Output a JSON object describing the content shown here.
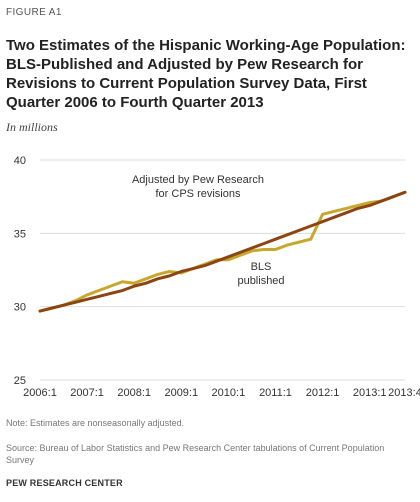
{
  "figure_label": "FIGURE A1",
  "chart_data": {
    "type": "line",
    "title": "Two Estimates of the Hispanic Working-Age Population: BLS-Published and Adjusted by Pew Research for Revisions to Current Population Survey Data, First Quarter 2006 to Fourth Quarter 2013",
    "subtitle": "In millions",
    "ylim": [
      25,
      40
    ],
    "yticks": [
      25,
      30,
      35,
      40
    ],
    "xtick_labels": [
      "2006:1",
      "2007:1",
      "2008:1",
      "2009:1",
      "2010:1",
      "2011:1",
      "2012:1",
      "2013:1",
      "2013:4"
    ],
    "xtick_positions": [
      0,
      4,
      8,
      12,
      16,
      20,
      24,
      28,
      31
    ],
    "grid": "horizontal",
    "series": [
      {
        "name": "Adjusted by Pew Research for CPS revisions",
        "color": "#8b4513",
        "values": [
          29.7,
          29.9,
          30.1,
          30.3,
          30.5,
          30.7,
          30.9,
          31.1,
          31.4,
          31.6,
          31.9,
          32.1,
          32.4,
          32.6,
          32.8,
          33.1,
          33.4,
          33.7,
          34.0,
          34.3,
          34.6,
          34.9,
          35.2,
          35.5,
          35.8,
          36.1,
          36.4,
          36.7,
          36.9,
          37.2,
          37.5,
          37.8
        ]
      },
      {
        "name": "BLS published",
        "color": "#c8a72d",
        "values": [
          29.7,
          29.9,
          30.1,
          30.4,
          30.8,
          31.1,
          31.4,
          31.7,
          31.6,
          31.9,
          32.2,
          32.4,
          32.3,
          32.6,
          32.9,
          33.2,
          33.2,
          33.5,
          33.8,
          33.9,
          33.9,
          34.2,
          34.4,
          34.6,
          36.3,
          36.5,
          36.7,
          36.9,
          37.1,
          37.2,
          37.5,
          37.8
        ]
      }
    ],
    "annotations": {
      "adjusted": [
        "Adjusted by Pew Research",
        "for CPS revisions"
      ],
      "bls": [
        "BLS",
        "published"
      ]
    }
  },
  "note": "Note: Estimates are nonseasonally adjusted.",
  "source": "Source: Bureau of Labor Statistics and Pew Research Center tabulations of Current Population Survey",
  "credit": "PEW RESEARCH CENTER"
}
